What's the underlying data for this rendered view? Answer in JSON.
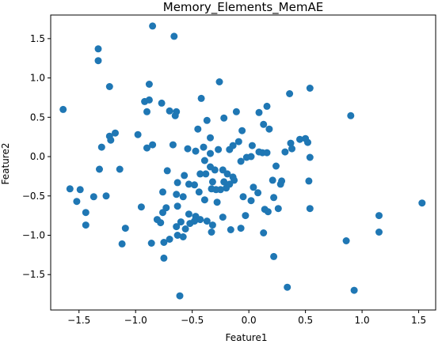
{
  "chart_data": {
    "type": "scatter",
    "title": "Memory_Elements_MemAE",
    "xlabel": "Feature1",
    "ylabel": "Feature2",
    "xlim": [
      -1.75,
      1.65
    ],
    "ylim": [
      -1.95,
      1.8
    ],
    "xticks": [
      -1.5,
      -1.0,
      -0.5,
      0.0,
      0.5,
      1.0,
      1.5
    ],
    "xtick_labels": [
      "−1.5",
      "−1.0",
      "−0.5",
      "0.0",
      "0.5",
      "1.0",
      "1.5"
    ],
    "yticks": [
      -1.5,
      -1.0,
      -0.5,
      0.0,
      0.5,
      1.0,
      1.5
    ],
    "ytick_labels": [
      "−1.5",
      "−1.0",
      "−0.5",
      "0.0",
      "0.5",
      "1.0",
      "1.5"
    ],
    "grid": false,
    "marker_color": "#1f77b4",
    "points": [
      [
        -0.85,
        1.66
      ],
      [
        -0.66,
        1.53
      ],
      [
        -1.33,
        1.37
      ],
      [
        -1.33,
        1.22
      ],
      [
        -1.64,
        0.6
      ],
      [
        -1.23,
        0.89
      ],
      [
        -0.88,
        0.92
      ],
      [
        -0.26,
        0.95
      ],
      [
        -0.42,
        0.74
      ],
      [
        -0.92,
        0.7
      ],
      [
        -0.88,
        0.72
      ],
      [
        -0.77,
        0.68
      ],
      [
        -0.7,
        0.58
      ],
      [
        -0.9,
        0.57
      ],
      [
        -0.64,
        0.57
      ],
      [
        -0.65,
        0.52
      ],
      [
        -0.37,
        0.46
      ],
      [
        -0.22,
        0.49
      ],
      [
        -0.11,
        0.57
      ],
      [
        0.09,
        0.56
      ],
      [
        0.16,
        0.64
      ],
      [
        0.36,
        0.8
      ],
      [
        0.54,
        0.87
      ],
      [
        0.9,
        0.52
      ],
      [
        -0.06,
        0.33
      ],
      [
        -0.34,
        0.24
      ],
      [
        -0.45,
        0.35
      ],
      [
        0.13,
        0.41
      ],
      [
        0.18,
        0.35
      ],
      [
        -1.18,
        0.3
      ],
      [
        -1.23,
        0.26
      ],
      [
        -1.22,
        0.21
      ],
      [
        -0.98,
        0.28
      ],
      [
        -0.9,
        0.11
      ],
      [
        -0.85,
        0.15
      ],
      [
        -1.3,
        0.12
      ],
      [
        -0.67,
        0.15
      ],
      [
        -0.54,
        0.1
      ],
      [
        -0.47,
        0.07
      ],
      [
        -0.4,
        0.12
      ],
      [
        -0.34,
        0.04
      ],
      [
        -0.27,
        0.09
      ],
      [
        -0.17,
        0.09
      ],
      [
        -0.14,
        0.14
      ],
      [
        -0.09,
        0.19
      ],
      [
        0.03,
        0.14
      ],
      [
        0.09,
        0.06
      ],
      [
        0.12,
        0.05
      ],
      [
        0.16,
        0.05
      ],
      [
        0.32,
        0.06
      ],
      [
        0.37,
        0.17
      ],
      [
        0.38,
        0.1
      ],
      [
        0.45,
        0.22
      ],
      [
        0.5,
        0.23
      ],
      [
        0.52,
        0.18
      ],
      [
        0.54,
        -0.01
      ],
      [
        -0.02,
        -0.01
      ],
      [
        -0.07,
        -0.06
      ],
      [
        0.02,
        0.0
      ],
      [
        -0.34,
        -0.13
      ],
      [
        -0.3,
        -0.17
      ],
      [
        -0.23,
        -0.17
      ],
      [
        -0.39,
        -0.05
      ],
      [
        0.24,
        -0.12
      ],
      [
        -1.32,
        -0.16
      ],
      [
        -1.14,
        -0.16
      ],
      [
        -0.72,
        -0.18
      ],
      [
        -0.57,
        -0.24
      ],
      [
        -0.43,
        -0.22
      ],
      [
        -0.38,
        -0.22
      ],
      [
        -0.19,
        -0.22
      ],
      [
        -0.14,
        -0.26
      ],
      [
        -0.13,
        -0.3
      ],
      [
        -0.22,
        -0.32
      ],
      [
        -0.32,
        -0.32
      ],
      [
        -0.63,
        -0.33
      ],
      [
        -0.53,
        -0.35
      ],
      [
        -0.48,
        -0.36
      ],
      [
        -0.44,
        -0.45
      ],
      [
        -0.33,
        -0.41
      ],
      [
        -0.29,
        -0.42
      ],
      [
        -0.25,
        -0.42
      ],
      [
        -0.2,
        -0.4
      ],
      [
        -0.17,
        -0.35
      ],
      [
        0.04,
        -0.39
      ],
      [
        0.08,
        -0.46
      ],
      [
        0.21,
        -0.3
      ],
      [
        0.28,
        -0.35
      ],
      [
        0.29,
        -0.31
      ],
      [
        0.53,
        -0.31
      ],
      [
        -1.58,
        -0.41
      ],
      [
        -1.49,
        -0.42
      ],
      [
        -1.37,
        -0.51
      ],
      [
        -1.26,
        -0.5
      ],
      [
        -0.76,
        -0.45
      ],
      [
        -0.64,
        -0.48
      ],
      [
        -0.58,
        -0.51
      ],
      [
        -0.39,
        -0.55
      ],
      [
        -0.28,
        -0.58
      ],
      [
        -0.05,
        -0.51
      ],
      [
        0.02,
        -0.56
      ],
      [
        0.22,
        -0.52
      ],
      [
        0.26,
        -0.66
      ],
      [
        0.14,
        -0.67
      ],
      [
        0.17,
        -0.7
      ],
      [
        -1.52,
        -0.57
      ],
      [
        -1.44,
        -0.71
      ],
      [
        -0.95,
        -0.64
      ],
      [
        -0.73,
        -0.65
      ],
      [
        -0.63,
        -0.63
      ],
      [
        -0.53,
        -0.73
      ],
      [
        -0.47,
        -0.76
      ],
      [
        -0.43,
        -0.8
      ],
      [
        -0.76,
        -0.71
      ],
      [
        -0.81,
        -0.8
      ],
      [
        -0.78,
        -0.84
      ],
      [
        -0.6,
        -0.83
      ],
      [
        -0.52,
        -0.85
      ],
      [
        -0.48,
        -0.82
      ],
      [
        -0.37,
        -0.82
      ],
      [
        -0.32,
        -0.87
      ],
      [
        -0.23,
        -0.77
      ],
      [
        -0.03,
        -0.75
      ],
      [
        0.54,
        -0.66
      ],
      [
        1.15,
        -0.75
      ],
      [
        1.53,
        -0.59
      ],
      [
        -1.44,
        -0.87
      ],
      [
        -1.09,
        -0.91
      ],
      [
        -0.64,
        -0.89
      ],
      [
        -0.56,
        -0.92
      ],
      [
        -0.33,
        -0.96
      ],
      [
        -0.16,
        -0.93
      ],
      [
        -0.07,
        -0.91
      ],
      [
        0.13,
        -0.97
      ],
      [
        1.15,
        -0.96
      ],
      [
        -1.12,
        -1.11
      ],
      [
        -0.86,
        -1.1
      ],
      [
        -0.75,
        -1.09
      ],
      [
        -0.7,
        -1.05
      ],
      [
        -0.63,
        -1.0
      ],
      [
        -0.58,
        -1.02
      ],
      [
        0.86,
        -1.07
      ],
      [
        -0.75,
        -1.29
      ],
      [
        0.22,
        -1.27
      ],
      [
        0.34,
        -1.66
      ],
      [
        0.93,
        -1.7
      ],
      [
        -0.61,
        -1.77
      ]
    ]
  }
}
